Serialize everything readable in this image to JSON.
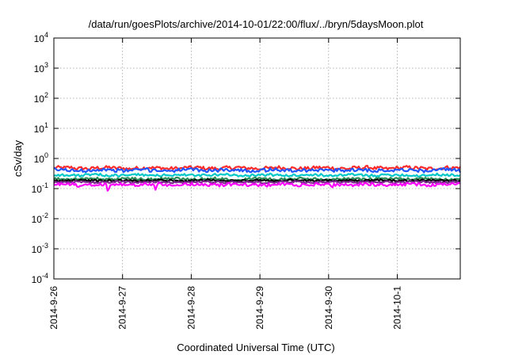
{
  "chart_data": {
    "type": "line",
    "title": "/data/run/goesPlots/archive/2014-10-01/22:00/flux/../bryn/5daysMoon.plot",
    "xlabel": "Coordinated Universal Time (UTC)",
    "ylabel": "cSv/day",
    "yscale": "log",
    "ylim": [
      0.0001,
      10000
    ],
    "xlim": [
      "2014-09-26 00:00",
      "2014-10-01 22:00"
    ],
    "grid": true,
    "legend": "none",
    "y_ticks": [
      {
        "base": "10",
        "exp": "-4"
      },
      {
        "base": "10",
        "exp": "-3"
      },
      {
        "base": "10",
        "exp": "-2"
      },
      {
        "base": "10",
        "exp": "-1"
      },
      {
        "base": "10",
        "exp": "0"
      },
      {
        "base": "10",
        "exp": "1"
      },
      {
        "base": "10",
        "exp": "2"
      },
      {
        "base": "10",
        "exp": "3"
      },
      {
        "base": "10",
        "exp": "4"
      }
    ],
    "x_ticks": [
      "2014-9-26",
      "2014-9-27",
      "2014-9-28",
      "2014-9-29",
      "2014-9-30",
      "2014-10-1"
    ],
    "series": [
      {
        "color": "#ff2a2a",
        "level": 0.48,
        "noise": 0.07,
        "dips": []
      },
      {
        "color": "#2255ff",
        "level": 0.41,
        "noise": 0.07,
        "dips": []
      },
      {
        "color": "#00c8c8",
        "level": 0.28,
        "noise": 0.05,
        "dips": []
      },
      {
        "color": "#2e8b57",
        "level": 0.21,
        "noise": 0.05,
        "dips": []
      },
      {
        "color": "#000000",
        "level": 0.185,
        "noise": 0.04,
        "dips": []
      },
      {
        "color": "#7a2a8a",
        "level": 0.165,
        "noise": 0.04,
        "dips": []
      },
      {
        "color": "#ff00ff",
        "level": 0.135,
        "noise": 0.06,
        "dips": [
          [
            0.79,
            0.06
          ],
          [
            1.48,
            0.09
          ],
          [
            0.35,
            0.1
          ],
          [
            3.1,
            0.11
          ],
          [
            4.05,
            0.1
          ]
        ]
      }
    ]
  }
}
